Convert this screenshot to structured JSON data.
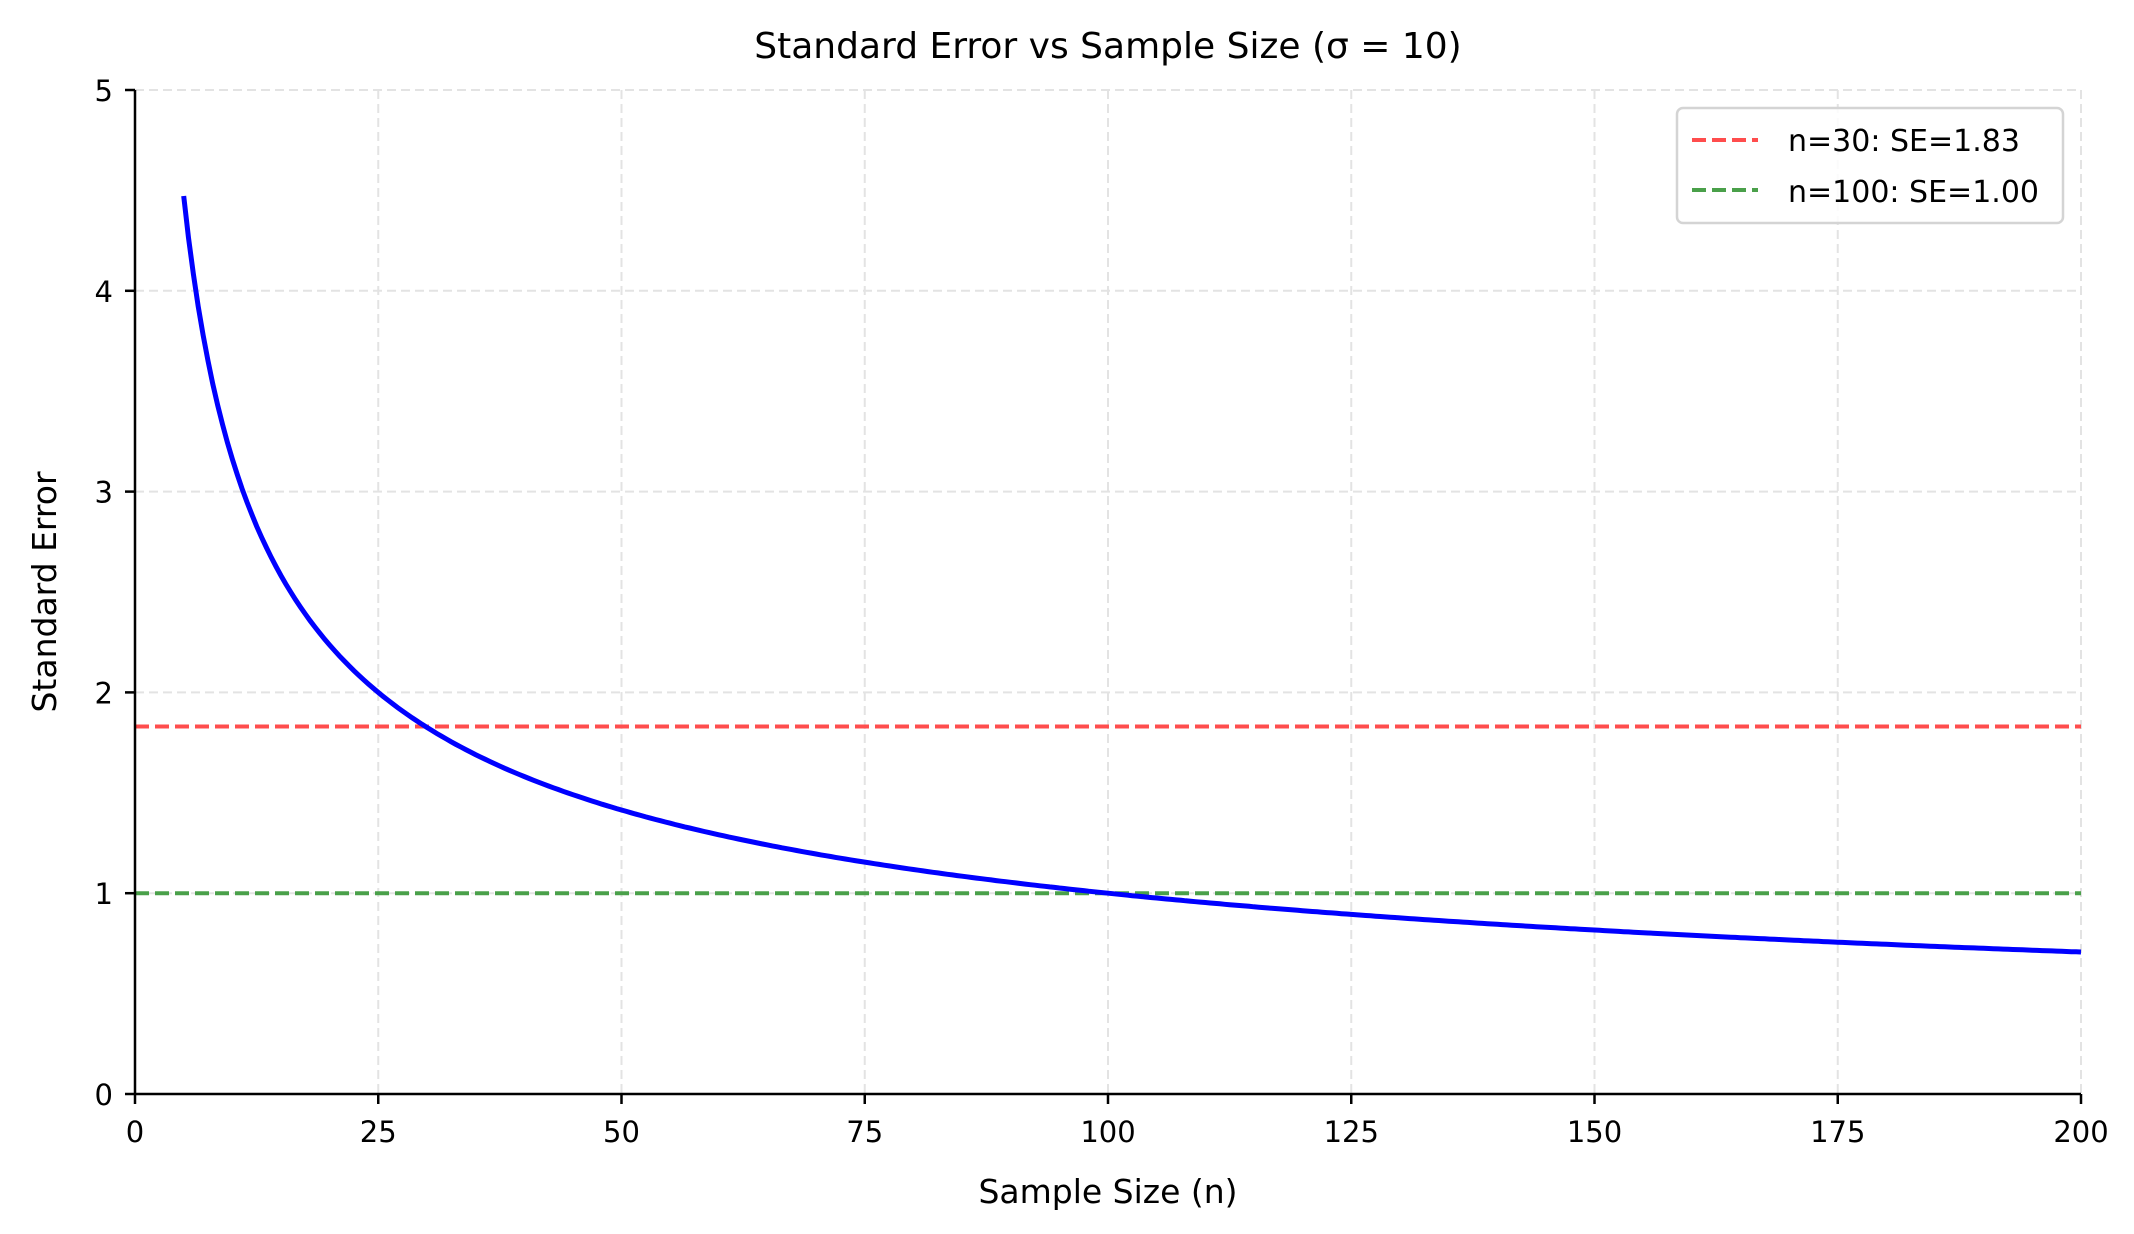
{
  "chart_data": {
    "type": "line",
    "title": "Standard Error vs Sample Size (σ = 10)",
    "xlabel": "Sample Size (n)",
    "ylabel": "Standard Error",
    "xlim": [
      0,
      200
    ],
    "ylim": [
      0,
      5
    ],
    "xticks": [
      0,
      25,
      50,
      75,
      100,
      125,
      150,
      175,
      200
    ],
    "yticks": [
      0,
      1,
      2,
      3,
      4,
      5
    ],
    "grid": true,
    "legend_position": "top-right",
    "series": [
      {
        "formula": "SE = 10 / sqrt(n)",
        "sigma": 10,
        "n_range": [
          5,
          200
        ],
        "color": "#0000ff",
        "style": "solid"
      }
    ],
    "reference_lines": [
      {
        "name": "n=30: SE=1.83",
        "y": 1.83,
        "color": "#ff4d4d",
        "style": "dashed"
      },
      {
        "name": "n=100: SE=1.00",
        "y": 1.0,
        "color": "#4aa04a",
        "style": "dashed"
      }
    ]
  }
}
